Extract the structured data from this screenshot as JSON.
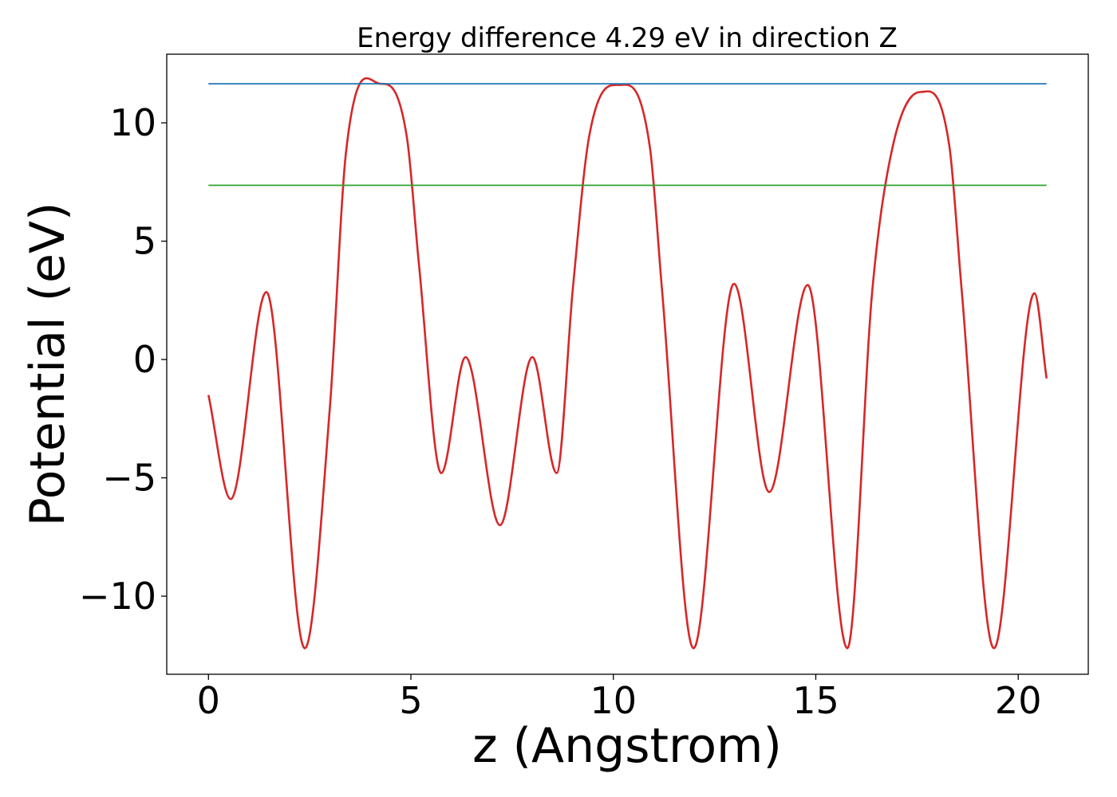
{
  "chart_data": {
    "type": "line",
    "title": "Energy difference 4.29 eV in direction Z",
    "xlabel": "z (Angstrom)",
    "ylabel": "Potential (eV)",
    "xlim": [
      -1.03,
      21.73
    ],
    "ylim": [
      -13.3,
      12.9
    ],
    "xticks": [
      0,
      5,
      10,
      15,
      20
    ],
    "xtick_labels": [
      "0",
      "5",
      "10",
      "15",
      "20"
    ],
    "yticks": [
      -10,
      -5,
      0,
      5,
      10
    ],
    "ytick_labels": [
      "−10",
      "−5",
      "0",
      "5",
      "10"
    ],
    "grid": false,
    "series": [
      {
        "color": "#d62728",
        "x": [
          0.0,
          0.55,
          1.43,
          2.38,
          3.0,
          3.4,
          4.25,
          4.9,
          5.2,
          5.75,
          6.35,
          7.2,
          8.0,
          8.6,
          9.0,
          9.4,
          10.15,
          10.9,
          11.2,
          11.98,
          12.98,
          13.85,
          14.8,
          15.78,
          16.4,
          16.9,
          17.58,
          18.3,
          18.6,
          19.4,
          20.4,
          20.7
        ],
        "y": [
          -1.5,
          -5.9,
          2.85,
          -12.2,
          -2.0,
          8.8,
          11.65,
          9.4,
          4.0,
          -4.8,
          0.1,
          -7.0,
          0.1,
          -4.8,
          3.0,
          9.4,
          11.6,
          9.0,
          3.0,
          -12.2,
          3.2,
          -5.6,
          3.15,
          -12.2,
          3.0,
          9.0,
          11.3,
          9.0,
          3.0,
          -12.2,
          2.8,
          -0.8
        ]
      },
      {
        "color": "#1f77b4",
        "x": [
          0.0,
          20.7
        ],
        "y": [
          11.65,
          11.65
        ]
      },
      {
        "color": "#2ca02c",
        "x": [
          0.0,
          20.7
        ],
        "y": [
          7.36,
          7.36
        ]
      }
    ]
  }
}
